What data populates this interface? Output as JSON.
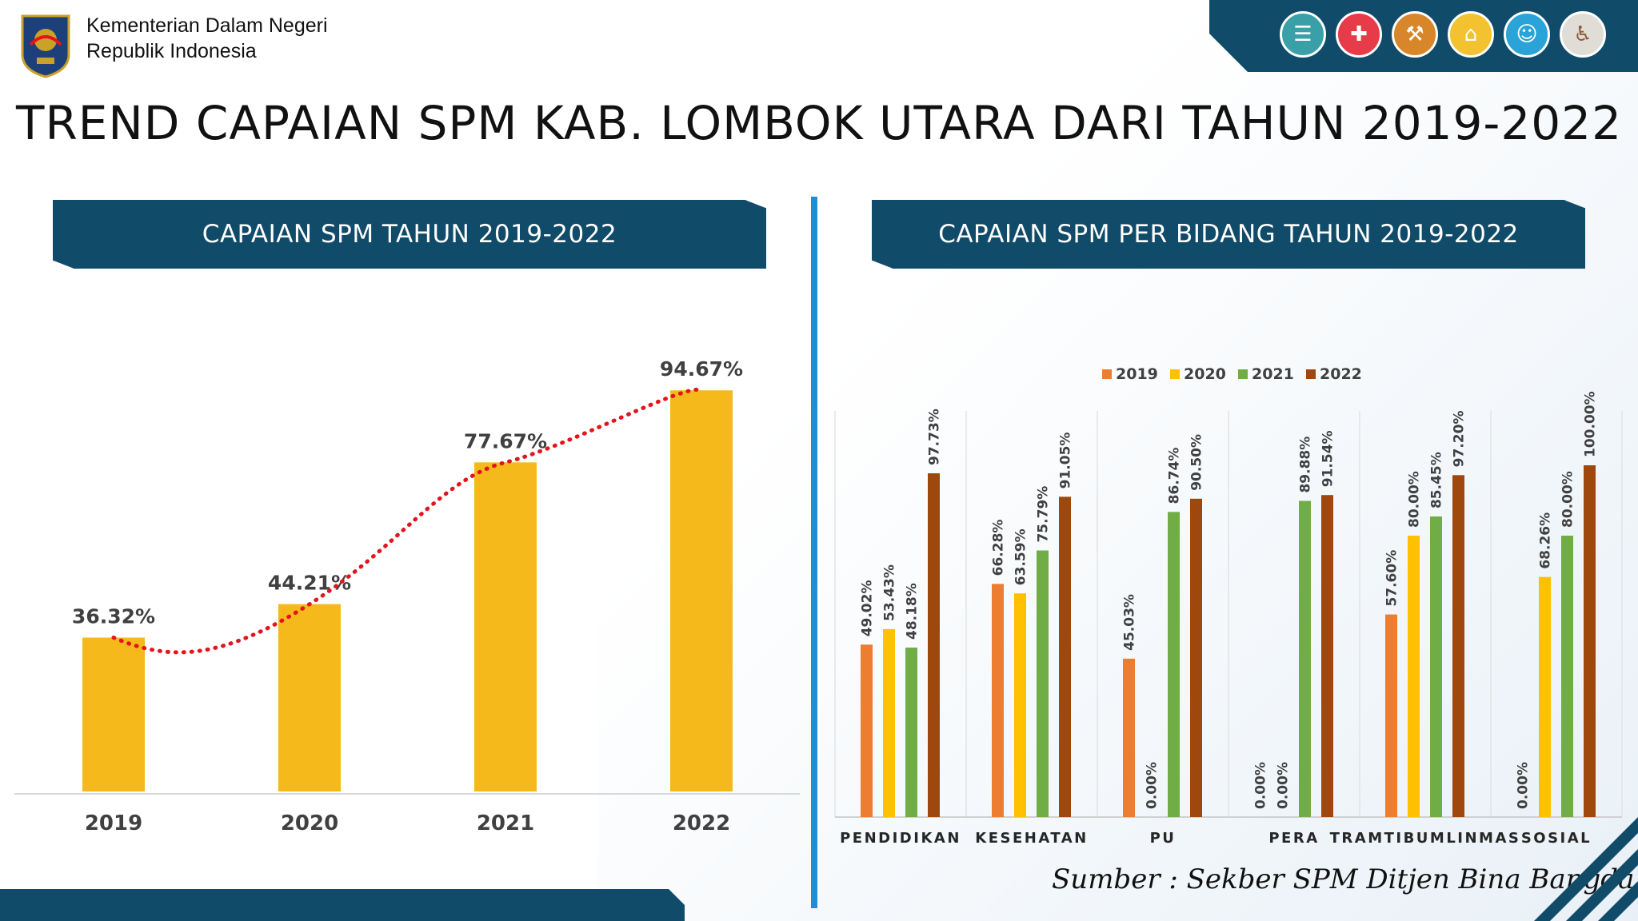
{
  "header": {
    "org_line1": "Kementerian Dalam Negeri",
    "org_line2": "Republik Indonesia",
    "title": "TREND CAPAIAN SPM KAB. LOMBOK UTARA DARI TAHUN 2019-2022"
  },
  "top_icons": [
    {
      "name": "education-icon",
      "color": "#3aa0a8"
    },
    {
      "name": "health-icon",
      "color": "#e83b4a"
    },
    {
      "name": "public-works-icon",
      "color": "#d8862a"
    },
    {
      "name": "housing-icon",
      "color": "#f2c230"
    },
    {
      "name": "social-protection-icon",
      "color": "#2aa3d8"
    },
    {
      "name": "social-welfare-icon",
      "color": "#e0dcd6"
    }
  ],
  "left_panel": {
    "banner": "CAPAIAN SPM TAHUN 2019-2022"
  },
  "right_panel": {
    "banner": "CAPAIAN SPM PER BIDANG TAHUN 2019-2022"
  },
  "source": "Sumber : Sekber SPM Ditjen Bina Bangda",
  "colors": {
    "navy": "#114b6a",
    "accent_blue": "#1e8fd4",
    "bar_yellow": "#f6b91b",
    "trend_red": "#e3141b"
  },
  "chart_data": [
    {
      "type": "bar",
      "categories": [
        "2019",
        "2020",
        "2021",
        "2022"
      ],
      "values": [
        36.32,
        44.21,
        77.67,
        94.67
      ],
      "value_labels": [
        "36.32%",
        "44.21%",
        "77.67%",
        "94.67%"
      ],
      "trendline": "dotted-red-smooth",
      "ylim": [
        0,
        100
      ],
      "grid": false
    },
    {
      "type": "bar",
      "categories": [
        "PENDIDIKAN",
        "KESEHATAN",
        "PU",
        "PERA",
        "TRAMTIBUMLINMAS",
        "SOSIAL"
      ],
      "legend_position": "top",
      "series": [
        {
          "name": "2019",
          "color": "#ed7d31",
          "values": [
            49.02,
            66.28,
            45.03,
            0.0,
            57.6,
            0.0
          ],
          "labels": [
            "49.02%",
            "66.28%",
            "45.03%",
            "0.00%",
            "57.60%",
            "0.00%"
          ]
        },
        {
          "name": "2020",
          "color": "#ffc000",
          "values": [
            53.43,
            63.59,
            0.0,
            0.0,
            80.0,
            68.26
          ],
          "labels": [
            "53.43%",
            "63.59%",
            "0.00%",
            "0.00%",
            "80.00%",
            "68.26%"
          ]
        },
        {
          "name": "2021",
          "color": "#70ad47",
          "values": [
            48.18,
            75.79,
            86.74,
            89.88,
            85.45,
            80.0
          ],
          "labels": [
            "48.18%",
            "75.79%",
            "86.74%",
            "89.88%",
            "85.45%",
            "80.00%"
          ]
        },
        {
          "name": "2022",
          "color": "#9e480e",
          "values": [
            97.73,
            91.05,
            90.5,
            91.54,
            97.2,
            100.0
          ],
          "labels": [
            "97.73%",
            "91.05%",
            "90.50%",
            "91.54%",
            "97.20%",
            "100.00%"
          ]
        }
      ],
      "ylim": [
        0,
        100
      ],
      "grid": "vertical-category-separators"
    }
  ]
}
